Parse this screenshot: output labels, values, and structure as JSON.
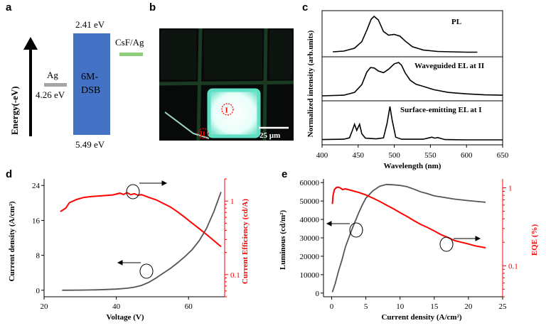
{
  "panels": {
    "a": "a",
    "b": "b",
    "c": "c",
    "d": "d",
    "e": "e"
  },
  "panel_a": {
    "axis_label": "Energy(-eV)",
    "ag_label": "Ag",
    "ag_value": "4.26 eV",
    "dsb_label_line1": "6M-",
    "dsb_label_line2": "DSB",
    "lumo": "2.41 eV",
    "homo": "5.49 eV",
    "cathode_label": "CsF/Ag",
    "colors": {
      "ag": "#a6a6a6",
      "dsb": "#4472c4",
      "cathode": "#8fce7b"
    }
  },
  "panel_b": {
    "marker_I": "I",
    "marker_II": "II",
    "scale_bar": "25 µm"
  },
  "chart_data": [
    {
      "type": "line",
      "panel": "c",
      "xlabel": "Wavelength (nm)",
      "ylabel": "Normalized intensity (arb.units)",
      "xlim": [
        400,
        650
      ],
      "xticks": [
        400,
        450,
        500,
        550,
        600,
        650
      ],
      "sub_plots": [
        {
          "label": "PL",
          "x": [
            415,
            430,
            445,
            455,
            462,
            468,
            472,
            478,
            485,
            492,
            500,
            508,
            515,
            525,
            540,
            560,
            580,
            600,
            615
          ],
          "y": [
            0.02,
            0.04,
            0.12,
            0.3,
            0.62,
            0.92,
            1.0,
            0.9,
            0.58,
            0.48,
            0.5,
            0.45,
            0.32,
            0.16,
            0.07,
            0.03,
            0.02,
            0.01,
            0.01
          ]
        },
        {
          "label": "Waveguided EL at II",
          "x": [
            400,
            430,
            445,
            455,
            462,
            467,
            472,
            478,
            485,
            492,
            500,
            506,
            510,
            515,
            522,
            530,
            540,
            555,
            575,
            600,
            625,
            650
          ],
          "y": [
            0.02,
            0.04,
            0.12,
            0.35,
            0.72,
            0.85,
            0.84,
            0.75,
            0.7,
            0.8,
            0.96,
            1.0,
            0.92,
            0.7,
            0.48,
            0.36,
            0.3,
            0.2,
            0.12,
            0.08,
            0.05,
            0.04
          ]
        },
        {
          "label": "Surface-emitting EL at I",
          "x": [
            400,
            430,
            438,
            442,
            445,
            448,
            452,
            455,
            460,
            475,
            485,
            490,
            494,
            497,
            502,
            510,
            540,
            548,
            552,
            556,
            560,
            570,
            600,
            650
          ],
          "y": [
            0.03,
            0.04,
            0.08,
            0.3,
            0.48,
            0.3,
            0.48,
            0.2,
            0.07,
            0.05,
            0.08,
            0.5,
            1.0,
            0.6,
            0.1,
            0.04,
            0.04,
            0.08,
            0.1,
            0.07,
            0.09,
            0.03,
            0.02,
            0.02
          ]
        }
      ]
    },
    {
      "type": "line",
      "panel": "d",
      "xlabel": "Voltage (V)",
      "ylabel": "Current density (A/cm²)",
      "y2label": "Current Efficiency (cd/A)",
      "xlim": [
        20,
        70
      ],
      "xticks": [
        20,
        40,
        60
      ],
      "ylim": [
        -1.5,
        25.5
      ],
      "yticks": [
        0,
        8,
        16,
        24
      ],
      "y2lim": [
        0.05,
        2.0
      ],
      "y2ticks": [
        0.1,
        1
      ],
      "y2_log": true,
      "series": [
        {
          "name": "",
          "axis": "left",
          "color": "#555555",
          "x": [
            25,
            30,
            35,
            40,
            43,
            45,
            47,
            49,
            51,
            53,
            55,
            57,
            59,
            61,
            63,
            65,
            67,
            69
          ],
          "y": [
            0,
            0.03,
            0.1,
            0.25,
            0.45,
            0.7,
            1.1,
            1.8,
            2.8,
            3.9,
            5.0,
            6.3,
            7.7,
            9.3,
            11.4,
            14.2,
            18.0,
            22.5
          ]
        },
        {
          "name": "",
          "axis": "right",
          "color": "#ff0000",
          "x": [
            24.5,
            26,
            27,
            29,
            31,
            33,
            35,
            37,
            39,
            41,
            42,
            43,
            44,
            45,
            46,
            47,
            49,
            51,
            53,
            55,
            57,
            59,
            61,
            63,
            65,
            67,
            69
          ],
          "y": [
            0.72,
            0.8,
            0.95,
            1.05,
            1.12,
            1.15,
            1.17,
            1.19,
            1.21,
            1.28,
            1.23,
            1.3,
            1.22,
            1.26,
            1.2,
            1.22,
            1.12,
            1.04,
            0.93,
            0.83,
            0.71,
            0.6,
            0.5,
            0.42,
            0.35,
            0.29,
            0.24
          ]
        }
      ]
    },
    {
      "type": "line",
      "panel": "e",
      "xlabel": "Current density (A/cm²)",
      "ylabel": "Luminous (cd/m²)",
      "y2label": "EQE (%)",
      "xlim": [
        -1.2,
        25
      ],
      "xticks": [
        0,
        5,
        10,
        15,
        20,
        25
      ],
      "ylim": [
        -2000,
        62000
      ],
      "yticks": [
        0,
        10000,
        20000,
        30000,
        40000,
        50000,
        60000
      ],
      "y2lim": [
        0.04,
        1.3
      ],
      "y2ticks": [
        0.1,
        1
      ],
      "y2_log": true,
      "series": [
        {
          "name": "",
          "axis": "left",
          "color": "#555555",
          "x": [
            0.1,
            0.5,
            1,
            1.5,
            2,
            2.5,
            3,
            3.5,
            4,
            4.5,
            5,
            6,
            7,
            8,
            9,
            10,
            11,
            12,
            13,
            14,
            15,
            16,
            18,
            20,
            22.5
          ],
          "y": [
            500,
            5000,
            12000,
            18000,
            25000,
            30000,
            35000,
            39500,
            44000,
            48000,
            51500,
            55500,
            58000,
            59000,
            58800,
            58500,
            57800,
            56500,
            55000,
            54000,
            52800,
            52200,
            51000,
            50200,
            49300
          ]
        },
        {
          "name": "",
          "axis": "right",
          "color": "#ff0000",
          "x": [
            0.1,
            0.2,
            0.4,
            0.7,
            1,
            1.3,
            1.6,
            2,
            3,
            4,
            5,
            6,
            7,
            8,
            9,
            10,
            11,
            12,
            13,
            14,
            15,
            16,
            17,
            18,
            19,
            20,
            21,
            22.5
          ],
          "y": [
            0.62,
            0.8,
            0.95,
            1.01,
            1.02,
            0.99,
            0.95,
            0.97,
            0.92,
            0.87,
            0.81,
            0.74,
            0.67,
            0.6,
            0.54,
            0.48,
            0.43,
            0.38,
            0.34,
            0.31,
            0.28,
            0.25,
            0.23,
            0.21,
            0.2,
            0.19,
            0.18,
            0.17
          ]
        }
      ]
    }
  ]
}
